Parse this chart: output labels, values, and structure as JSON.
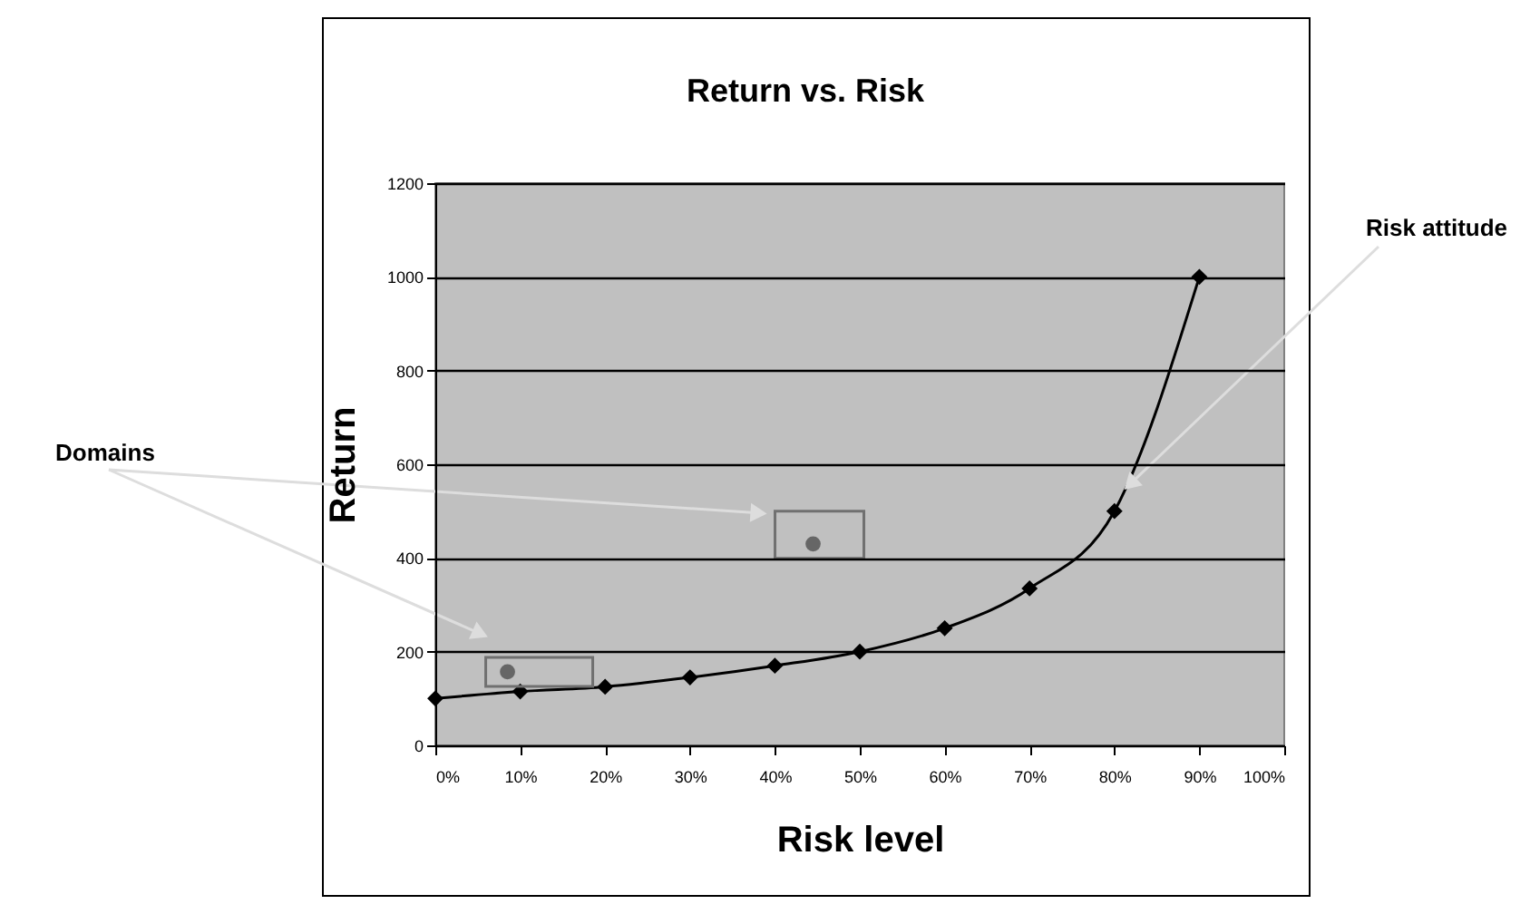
{
  "chart_data": {
    "type": "line",
    "title": "Return vs. Risk",
    "xlabel": "Risk level",
    "ylabel": "Return",
    "x": [
      0,
      10,
      20,
      30,
      40,
      50,
      60,
      70,
      80,
      90
    ],
    "series": [
      {
        "color": "#000000",
        "marker": "diamond",
        "values": [
          100,
          115,
          125,
          145,
          170,
          200,
          250,
          335,
          500,
          1000
        ]
      },
      {
        "type": "scatter",
        "color": "#666666",
        "marker": "circle",
        "x": [
          8.5,
          44.5
        ],
        "values": [
          157,
          430
        ]
      }
    ],
    "xlim": [
      0,
      100
    ],
    "xticks": [
      {
        "value": 0,
        "label": "0%"
      },
      {
        "value": 10,
        "label": "10%"
      },
      {
        "value": 20,
        "label": "20%"
      },
      {
        "value": 30,
        "label": "30%"
      },
      {
        "value": 40,
        "label": "40%"
      },
      {
        "value": 50,
        "label": "50%"
      },
      {
        "value": 60,
        "label": "60%"
      },
      {
        "value": 70,
        "label": "70%"
      },
      {
        "value": 80,
        "label": "80%"
      },
      {
        "value": 90,
        "label": "90%"
      },
      {
        "value": 100,
        "label": "100%"
      }
    ],
    "ylim": [
      0,
      1200
    ],
    "yticks": [
      0,
      200,
      400,
      600,
      800,
      1000,
      1200
    ],
    "grid": "y",
    "legend": false,
    "annotations": [
      "Domains",
      {
        "text": "Risk attitude",
        "x": 81,
        "y": 550
      }
    ]
  }
}
